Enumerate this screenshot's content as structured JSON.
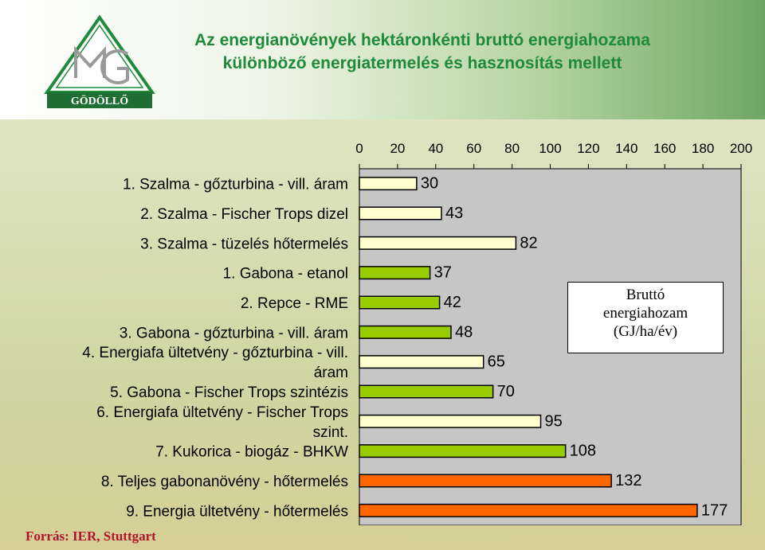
{
  "header": {
    "title_line1": "Az energianövények hektáronkénti bruttó energiahozama",
    "title_line2": "különböző energiatermelés és hasznosítás mellett",
    "logo_text": "GÖDÖLLŐ"
  },
  "source": "Forrás: IER, Stuttgart",
  "colors": {
    "title": "#1f8a3a",
    "source": "#b0142c"
  },
  "chart_data": {
    "type": "bar",
    "orientation": "horizontal",
    "categories": [
      "1. Szalma - gőzturbina - vill. áram",
      "2. Szalma - Fischer Trops dizel",
      "3. Szalma - tüzelés hőtermelés",
      "1. Gabona - etanol",
      "2. Repce - RME",
      "3. Gabona - gőzturbina - vill. áram",
      "4. Energiafa ültetvény - gőzturbina - vill. áram",
      "5. Gabona - Fischer Trops szintézis",
      "6. Energiafa ültetvény - Fischer Trops szint.",
      "7. Kukorica - biogáz - BHKW",
      "8. Teljes gabonanövény - hőtermelés",
      "9. Energia ültetvény - hőtermelés"
    ],
    "category_lines": [
      [
        "1. Szalma - gőzturbina - vill. áram"
      ],
      [
        "2. Szalma - Fischer Trops dizel"
      ],
      [
        "3. Szalma - tüzelés hőtermelés"
      ],
      [
        "1. Gabona - etanol"
      ],
      [
        "2. Repce - RME"
      ],
      [
        "3. Gabona - gőzturbina - vill. áram"
      ],
      [
        "4. Energiafa ültetvény - gőzturbina - vill.",
        "áram"
      ],
      [
        "5. Gabona - Fischer Trops szintézis"
      ],
      [
        "6. Energiafa ültetvény - Fischer Trops",
        "szint."
      ],
      [
        "7. Kukorica - biogáz - BHKW"
      ],
      [
        "8. Teljes gabonanövény - hőtermelés"
      ],
      [
        "9. Energia ültetvény - hőtermelés"
      ]
    ],
    "values": [
      30,
      43,
      82,
      37,
      42,
      48,
      65,
      70,
      95,
      108,
      132,
      177
    ],
    "bar_colors": [
      "#ffffd0",
      "#ffffd0",
      "#ffffd0",
      "#99cc00",
      "#99cc00",
      "#99cc00",
      "#ffffd0",
      "#99cc00",
      "#ffffd0",
      "#99cc00",
      "#ff6600",
      "#ff6600"
    ],
    "x_ticks": [
      "0",
      "20",
      "40",
      "60",
      "80",
      "100",
      "120",
      "140",
      "160",
      "180",
      "200"
    ],
    "xlim": [
      0,
      200
    ],
    "axis_position": "top",
    "legend_text": [
      "Bruttó",
      "energiahozam",
      "(GJ/ha/év)"
    ]
  }
}
